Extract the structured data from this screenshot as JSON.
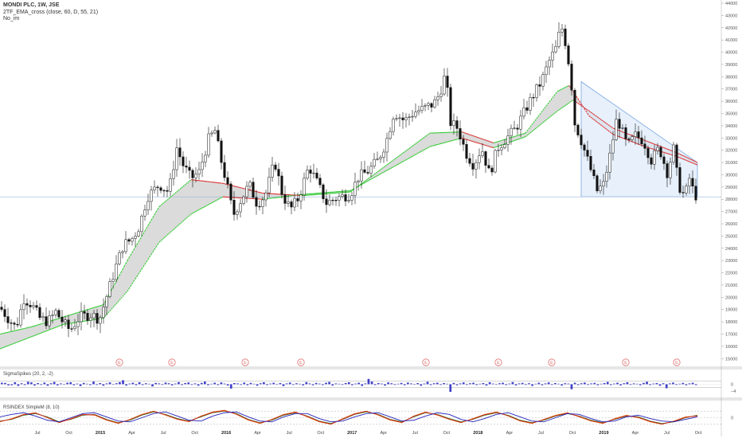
{
  "header": {
    "title": "MONDI PLC, 1W, JSE",
    "indicator1": "2TF_EMA_cross (close, 60, D, 55, 21)",
    "indicator2": "No_im"
  },
  "panels": {
    "sigma": "SigmaSpikes (20, 2, -2)",
    "rsi": "RSINDEX SimpleM (8, 10)"
  },
  "colors": {
    "candle_up": "#ffffff",
    "candle_down": "#111111",
    "ema_fast_rising": "#33cc33",
    "ema_fast_falling": "#dd3333",
    "ema_band": "#cfcfcf",
    "triangle_fill": "#dde9f9",
    "triangle_stroke": "#7aa7e0",
    "hline": "#9ab6d8",
    "bars": "#4040c8",
    "earnings": "#e07070",
    "rsi_green": "#228822",
    "rsi_orange": "#e87a1e",
    "rsi_red": "#cc2222",
    "rsi_blue": "#2222bb"
  },
  "earnings_marker": "E",
  "chart_data": [
    {
      "type": "candlestick",
      "title": "MONDI PLC, 1W, JSE",
      "ylim": [
        14500,
        44000
      ],
      "yticks": [
        15000,
        16000,
        17000,
        18000,
        19000,
        20000,
        21000,
        22000,
        23000,
        24000,
        25000,
        26000,
        27000,
        28000,
        29000,
        30000,
        31000,
        32000,
        33000,
        34000,
        35000,
        36000,
        37000,
        38000,
        39000,
        40000,
        41000,
        42000,
        43000,
        44000
      ],
      "horizontal_level": 28200,
      "x_labels": [
        {
          "label": "Jul",
          "bold": false
        },
        {
          "label": "Oct",
          "bold": false
        },
        {
          "label": "2015",
          "bold": true
        },
        {
          "label": "Apr",
          "bold": false
        },
        {
          "label": "Jul",
          "bold": false
        },
        {
          "label": "Oct",
          "bold": false
        },
        {
          "label": "2016",
          "bold": true
        },
        {
          "label": "Apr",
          "bold": false
        },
        {
          "label": "Jul",
          "bold": false
        },
        {
          "label": "Oct",
          "bold": false
        },
        {
          "label": "2017",
          "bold": true
        },
        {
          "label": "Apr",
          "bold": false
        },
        {
          "label": "Jul",
          "bold": false
        },
        {
          "label": "Oct",
          "bold": false
        },
        {
          "label": "2018",
          "bold": true
        },
        {
          "label": "Apr",
          "bold": false
        },
        {
          "label": "Jul",
          "bold": false
        },
        {
          "label": "Oct",
          "bold": false
        },
        {
          "label": "2019",
          "bold": true
        },
        {
          "label": "Apr",
          "bold": false
        },
        {
          "label": "Jul",
          "bold": false
        },
        {
          "label": "Oct",
          "bold": false
        }
      ],
      "price_path": [
        [
          0,
          19200
        ],
        [
          10,
          18300
        ],
        [
          20,
          17500
        ],
        [
          30,
          19900
        ],
        [
          40,
          19400
        ],
        [
          50,
          18300
        ],
        [
          60,
          18000
        ],
        [
          70,
          18800
        ],
        [
          80,
          17900
        ],
        [
          88,
          17300
        ],
        [
          100,
          18400
        ],
        [
          115,
          18600
        ],
        [
          125,
          18200
        ],
        [
          135,
          20300
        ],
        [
          145,
          22400
        ],
        [
          155,
          24300
        ],
        [
          165,
          24700
        ],
        [
          175,
          25800
        ],
        [
          185,
          28200
        ],
        [
          200,
          29200
        ],
        [
          212,
          28600
        ],
        [
          222,
          32200
        ],
        [
          230,
          30800
        ],
        [
          240,
          29700
        ],
        [
          250,
          30200
        ],
        [
          262,
          32900
        ],
        [
          270,
          33600
        ],
        [
          278,
          31100
        ],
        [
          285,
          29200
        ],
        [
          293,
          26700
        ],
        [
          303,
          28000
        ],
        [
          313,
          29200
        ],
        [
          323,
          27600
        ],
        [
          333,
          28300
        ],
        [
          345,
          31100
        ],
        [
          355,
          28300
        ],
        [
          365,
          27200
        ],
        [
          375,
          28100
        ],
        [
          388,
          30700
        ],
        [
          398,
          29400
        ],
        [
          410,
          27700
        ],
        [
          422,
          28100
        ],
        [
          440,
          28400
        ],
        [
          450,
          29800
        ],
        [
          462,
          30300
        ],
        [
          475,
          31200
        ],
        [
          485,
          32700
        ],
        [
          495,
          35100
        ],
        [
          508,
          34400
        ],
        [
          520,
          35100
        ],
        [
          532,
          35400
        ],
        [
          545,
          35800
        ],
        [
          552,
          36600
        ],
        [
          560,
          38300
        ],
        [
          565,
          34300
        ],
        [
          575,
          33800
        ],
        [
          585,
          31800
        ],
        [
          595,
          30800
        ],
        [
          605,
          32200
        ],
        [
          615,
          30000
        ],
        [
          625,
          32200
        ],
        [
          635,
          32900
        ],
        [
          648,
          33800
        ],
        [
          660,
          35300
        ],
        [
          668,
          36300
        ],
        [
          680,
          37600
        ],
        [
          690,
          39300
        ],
        [
          698,
          40300
        ],
        [
          705,
          42200
        ],
        [
          712,
          40300
        ],
        [
          718,
          37200
        ],
        [
          722,
          34200
        ],
        [
          728,
          33200
        ],
        [
          735,
          31800
        ],
        [
          742,
          30400
        ],
        [
          750,
          28700
        ],
        [
          758,
          29200
        ],
        [
          765,
          31200
        ],
        [
          775,
          34700
        ],
        [
          788,
          32300
        ],
        [
          798,
          33200
        ],
        [
          808,
          32800
        ],
        [
          818,
          31200
        ],
        [
          828,
          32200
        ],
        [
          838,
          30200
        ],
        [
          846,
          32100
        ],
        [
          852,
          29200
        ],
        [
          860,
          28200
        ],
        [
          866,
          29700
        ],
        [
          872,
          28400
        ],
        [
          876,
          28200
        ]
      ],
      "ema_fast": [
        [
          0,
          15800
        ],
        [
          40,
          16800
        ],
        [
          80,
          17800
        ],
        [
          130,
          18300
        ],
        [
          160,
          20500
        ],
        [
          200,
          24500
        ],
        [
          240,
          26800
        ],
        [
          280,
          28200
        ],
        [
          330,
          28000
        ],
        [
          380,
          28400
        ],
        [
          440,
          28700
        ],
        [
          490,
          30500
        ],
        [
          540,
          32300
        ],
        [
          580,
          33000
        ],
        [
          620,
          32200
        ],
        [
          660,
          33100
        ],
        [
          700,
          35200
        ],
        [
          720,
          36100
        ],
        [
          740,
          35200
        ],
        [
          770,
          33800
        ],
        [
          810,
          32800
        ],
        [
          850,
          31800
        ],
        [
          876,
          31000
        ]
      ],
      "ema_slow": [
        [
          0,
          17000
        ],
        [
          40,
          17600
        ],
        [
          80,
          18400
        ],
        [
          130,
          19400
        ],
        [
          160,
          23000
        ],
        [
          200,
          27400
        ],
        [
          240,
          29600
        ],
        [
          280,
          29300
        ],
        [
          330,
          28500
        ],
        [
          380,
          28300
        ],
        [
          440,
          28600
        ],
        [
          490,
          31000
        ],
        [
          540,
          33400
        ],
        [
          580,
          33500
        ],
        [
          620,
          32600
        ],
        [
          660,
          33400
        ],
        [
          700,
          36800
        ],
        [
          715,
          37300
        ],
        [
          740,
          34800
        ],
        [
          770,
          33300
        ],
        [
          810,
          32300
        ],
        [
          850,
          31500
        ],
        [
          876,
          30800
        ]
      ],
      "triangle": [
        [
          730,
          37600
        ],
        [
          876,
          31000
        ],
        [
          876,
          28200
        ],
        [
          730,
          28200
        ]
      ],
      "earnings_x": [
        150,
        216,
        308,
        378,
        535,
        626,
        693,
        786,
        850
      ]
    },
    {
      "type": "bar",
      "title": "SigmaSpikes (20, 2, -2)",
      "ylim": [
        -6.5,
        5.5
      ],
      "yticks": [
        0,
        -4
      ],
      "guide_levels": [
        2,
        -2
      ],
      "values": [
        0.9,
        0.8,
        -0.7,
        -0.6,
        1.2,
        -1.0,
        0.6,
        -0.5,
        1.5,
        1.1,
        -0.8,
        0.7,
        -0.4,
        1.0,
        -0.9,
        0.6,
        1.4,
        -0.7,
        0.5,
        -0.3,
        0.9,
        1.2,
        -0.6,
        0.4,
        -1.1,
        0.8,
        0.3,
        -0.5,
        1.6,
        -0.4,
        0.7,
        -0.9,
        0.5,
        1.1,
        -0.3,
        0.6,
        1.3,
        2.4,
        -0.8,
        0.4,
        0.9,
        -0.6,
        1.2,
        -0.5,
        0.6,
        0.3,
        -1.3,
        0.8,
        0.5,
        -0.4,
        1.0,
        0.6,
        -0.7,
        0.4,
        1.3,
        -0.5,
        0.7,
        1.1,
        -0.4,
        0.5,
        -0.9,
        0.8,
        1.6,
        -0.6,
        0.3,
        0.9,
        -0.5,
        1.1,
        0.4,
        -0.8,
        -2.6,
        0.7,
        0.5,
        -0.4,
        1.0,
        -0.6,
        0.8,
        0.3,
        -0.9,
        0.6,
        1.2,
        -0.5,
        0.4,
        0.9,
        -0.3,
        0.7,
        -1.1,
        0.5,
        1.0,
        -0.4,
        0.6,
        0.3,
        -0.7,
        1.3,
        0.5,
        -0.6,
        0.8,
        0.4,
        -0.5,
        0.9,
        1.4,
        -0.8,
        0.5,
        0.3,
        -0.4,
        0.7,
        1.2,
        -0.6,
        0.4,
        0.9,
        -1.0,
        0.5,
        3.2,
        1.6,
        -0.5,
        0.7,
        0.4,
        -0.8,
        1.1,
        0.6,
        -0.4,
        0.3,
        0.8,
        -0.6,
        1.0,
        0.5,
        -0.3,
        0.7,
        -0.9,
        0.4,
        1.5,
        -0.5,
        0.6,
        0.9,
        -0.4,
        0.7,
        0.3,
        -4.6,
        0.8,
        -0.6,
        0.5,
        1.1,
        -0.4,
        0.6,
        0.9,
        -0.5,
        0.3,
        0.7,
        -0.8,
        1.2,
        0.4,
        -0.3,
        0.6,
        0.9,
        -0.5,
        0.4,
        1.3,
        -0.7,
        0.5,
        0.8,
        -0.4,
        0.6,
        -1.0,
        0.3,
        0.9,
        -0.6,
        0.5,
        1.1,
        -0.4,
        0.7,
        0.3,
        -0.8,
        0.6,
        0.4,
        -3.0,
        0.9,
        -0.5,
        0.6,
        1.0,
        -0.4,
        0.5,
        0.8,
        -0.6,
        0.3,
        0.7,
        1.4,
        -0.5,
        0.4,
        0.9,
        -0.7,
        0.6,
        1.2,
        -0.4,
        0.5,
        0.3,
        -0.6,
        0.8,
        1.5,
        -0.5,
        0.4,
        0.7,
        -0.9,
        0.6,
        -2.4,
        0.5,
        1.0,
        -0.4,
        0.3,
        0.8,
        -0.6,
        0.5,
        0.9,
        -0.5
      ]
    },
    {
      "type": "line",
      "title": "RSINDEX SimpleM (8, 10)",
      "ylim": [
        -6,
        6
      ],
      "yticks": [
        0
      ],
      "guide_levels": [
        4,
        -4
      ],
      "series": [
        {
          "color_key": "rsi_green",
          "values": [
            -2.0,
            -1.0,
            1.5,
            2.5,
            0.5,
            -2.5,
            -1.0,
            1.5,
            2.0,
            -1.0,
            -3.0,
            -1.5,
            1.5,
            3.5,
            2.0,
            -0.5,
            -2.0,
            0.5,
            3.0,
            4.0,
            2.5,
            -1.0,
            -3.0,
            -1.5,
            1.5,
            3.0,
            1.0,
            -2.0,
            -3.5,
            -1.0,
            2.0,
            3.5,
            2.0,
            -1.0,
            -2.5,
            0.5,
            3.0,
            2.0,
            -0.5,
            -2.5,
            -1.0,
            1.5,
            3.0,
            1.5,
            -1.5,
            -3.0,
            -1.5,
            1.0,
            2.5,
            1.0,
            -1.5,
            -3.0,
            -1.0,
            1.0,
            0.5,
            -2.0,
            -3.5,
            -2.5,
            0.0,
            1.5
          ]
        },
        {
          "color_key": "rsi_orange",
          "values": [
            -2.5,
            -0.5,
            2.0,
            3.0,
            0.0,
            -3.0,
            -0.5,
            2.0,
            1.5,
            -1.5,
            -3.5,
            -1.0,
            2.0,
            4.0,
            1.5,
            -1.0,
            -2.5,
            1.0,
            3.5,
            4.5,
            2.0,
            -1.5,
            -3.5,
            -1.0,
            2.0,
            3.5,
            0.5,
            -2.5,
            -4.0,
            -0.5,
            2.5,
            4.0,
            1.5,
            -1.5,
            -3.0,
            1.0,
            3.5,
            1.5,
            -1.0,
            -3.0,
            -0.5,
            2.0,
            3.5,
            1.0,
            -2.0,
            -3.5,
            -1.0,
            1.5,
            3.0,
            0.5,
            -2.0,
            -3.5,
            -0.5,
            1.5,
            0.0,
            -2.5,
            -4.0,
            -2.0,
            0.5,
            1.0
          ]
        },
        {
          "color_key": "rsi_red",
          "values": [
            -2.2,
            -0.8,
            1.8,
            2.8,
            0.2,
            -2.8,
            -0.8,
            1.8,
            1.8,
            -1.2,
            -3.2,
            -1.2,
            1.8,
            3.8,
            1.8,
            -0.8,
            -2.2,
            0.8,
            3.2,
            4.2,
            2.2,
            -1.2,
            -3.2,
            -1.2,
            1.8,
            3.2,
            0.8,
            -2.2,
            -3.8,
            -0.8,
            2.2,
            3.8,
            1.8,
            -1.2,
            -2.8,
            0.8,
            3.2,
            1.8,
            -0.8,
            -2.8,
            -0.8,
            1.8,
            3.2,
            1.2,
            -1.8,
            -3.2,
            -1.2,
            1.2,
            2.8,
            0.8,
            -1.8,
            -3.2,
            -0.8,
            1.2,
            0.2,
            -2.2,
            -3.8,
            -2.2,
            0.2,
            1.2
          ]
        },
        {
          "color_key": "rsi_blue",
          "values": [
            0.5,
            2.0,
            3.0,
            1.0,
            -1.5,
            -2.5,
            0.0,
            2.5,
            3.0,
            0.5,
            -2.0,
            -2.5,
            0.0,
            2.5,
            3.5,
            1.0,
            -1.5,
            -2.0,
            1.0,
            3.0,
            3.5,
            0.5,
            -2.0,
            -2.5,
            0.5,
            2.5,
            2.5,
            -0.5,
            -2.5,
            -2.0,
            0.5,
            2.5,
            3.0,
            0.5,
            -2.0,
            -1.5,
            1.0,
            3.0,
            2.0,
            -1.0,
            -2.5,
            -0.5,
            2.0,
            3.0,
            0.5,
            -2.0,
            -2.5,
            0.0,
            2.5,
            2.0,
            -0.5,
            -2.5,
            -2.0,
            0.5,
            1.5,
            -0.5,
            -2.0,
            -2.5,
            -1.0,
            0.5
          ]
        }
      ]
    }
  ]
}
